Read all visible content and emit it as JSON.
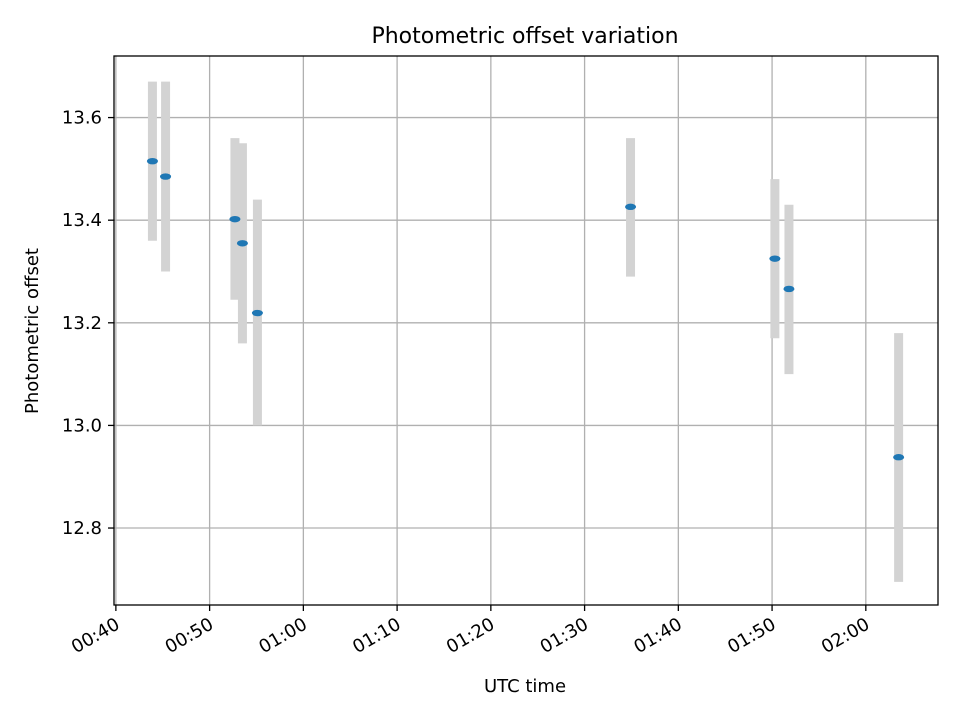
{
  "chart_data": {
    "type": "scatter",
    "title": "Photometric offset variation",
    "xlabel": "UTC time",
    "ylabel": "Photometric offset",
    "xlim": [
      "00:39.8",
      "02:07.7"
    ],
    "ylim": [
      12.65,
      13.72
    ],
    "x_ticks": [
      "00:40",
      "00:50",
      "01:00",
      "01:10",
      "01:20",
      "01:30",
      "01:40",
      "01:50",
      "02:00"
    ],
    "y_ticks": [
      "12.8",
      "13.0",
      "13.2",
      "13.4",
      "13.6"
    ],
    "grid": true,
    "colors": {
      "marker": "#1f77b4",
      "errorbar": "#d3d3d3",
      "grid": "#b0b0b0"
    },
    "series": [
      {
        "points": [
          {
            "x": "00:43.9",
            "y": 13.515,
            "ylow": 13.36,
            "yhigh": 13.67
          },
          {
            "x": "00:45.3",
            "y": 13.485,
            "ylow": 13.3,
            "yhigh": 13.67
          },
          {
            "x": "00:52.7",
            "y": 13.402,
            "ylow": 13.245,
            "yhigh": 13.56
          },
          {
            "x": "00:53.5",
            "y": 13.355,
            "ylow": 13.16,
            "yhigh": 13.55
          },
          {
            "x": "00:55.1",
            "y": 13.219,
            "ylow": 13.0,
            "yhigh": 13.44
          },
          {
            "x": "01:34.9",
            "y": 13.426,
            "ylow": 13.29,
            "yhigh": 13.56
          },
          {
            "x": "01:50.3",
            "y": 13.325,
            "ylow": 13.17,
            "yhigh": 13.48
          },
          {
            "x": "01:51.8",
            "y": 13.266,
            "ylow": 13.1,
            "yhigh": 13.43
          },
          {
            "x": "02:03.5",
            "y": 12.938,
            "ylow": 12.695,
            "yhigh": 13.18
          }
        ]
      }
    ]
  }
}
